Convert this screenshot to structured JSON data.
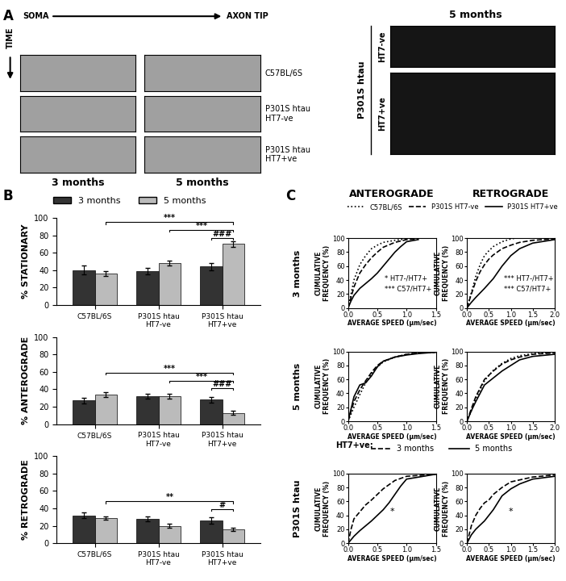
{
  "panel_labels": [
    "A",
    "B",
    "C"
  ],
  "panel_A": {
    "axis_start": "SOMA",
    "axis_end": "AXON TIP",
    "time_label": "TIME",
    "rows": [
      "C57BL/6S",
      "P301S htau\nHT7-ve",
      "P301S htau\nHT7+ve"
    ],
    "columns": [
      "3 months",
      "5 months"
    ],
    "images_title": "5 months",
    "images_group": "P301S htau",
    "images_rows": [
      "HT7-ve",
      "HT7+ve"
    ]
  },
  "panel_C": {
    "row_labels": [
      "3 months",
      "5 months",
      "P301S htau"
    ],
    "legend_prefix": "HT7+ve:"
  },
  "chart_data": [
    {
      "type": "bar",
      "y_label": "% STATIONARY",
      "legend": "upper left",
      "categories": [
        "C57BL/6S",
        "P301S htau\nHT7-ve",
        "P301S htau\nHT7+ve"
      ],
      "series": [
        {
          "name": "3 months",
          "color": "#333333",
          "values": [
            40,
            39,
            44
          ],
          "errors": [
            5,
            4,
            4
          ]
        },
        {
          "name": "5 months",
          "color": "#bbbbbb",
          "values": [
            36,
            48,
            70
          ],
          "errors": [
            3,
            3,
            3
          ]
        }
      ],
      "ylim": [
        0,
        100
      ],
      "yticks": [
        0,
        20,
        40,
        60,
        80,
        100
      ],
      "brackets": [
        {
          "a": [
            2,
            0
          ],
          "b": [
            2,
            1
          ],
          "text": "###"
        },
        {
          "a": [
            1,
            1
          ],
          "b": [
            2,
            1
          ],
          "text": "***"
        },
        {
          "a": [
            0,
            1
          ],
          "b": [
            2,
            1
          ],
          "text": "***"
        }
      ]
    },
    {
      "type": "bar",
      "y_label": "% ANTEROGRADE",
      "categories": [
        "C57BL/6S",
        "P301S htau\nHT7-ve",
        "P301S htau\nHT7+ve"
      ],
      "series": [
        {
          "name": "3 months",
          "color": "#333333",
          "values": [
            27,
            32,
            28
          ],
          "errors": [
            3,
            3,
            3
          ]
        },
        {
          "name": "5 months",
          "color": "#bbbbbb",
          "values": [
            34,
            32,
            13
          ],
          "errors": [
            3,
            3,
            2
          ]
        }
      ],
      "ylim": [
        0,
        100
      ],
      "yticks": [
        0,
        20,
        40,
        60,
        80,
        100
      ],
      "brackets": [
        {
          "a": [
            2,
            0
          ],
          "b": [
            2,
            1
          ],
          "text": "###"
        },
        {
          "a": [
            1,
            1
          ],
          "b": [
            2,
            1
          ],
          "text": "***"
        },
        {
          "a": [
            0,
            1
          ],
          "b": [
            2,
            1
          ],
          "text": "***"
        }
      ]
    },
    {
      "type": "bar",
      "y_label": "% RETROGRADE",
      "categories": [
        "C57BL/6S",
        "P301S htau\nHT7-ve",
        "P301S htau\nHT7+ve"
      ],
      "series": [
        {
          "name": "3 months",
          "color": "#333333",
          "values": [
            32,
            28,
            26
          ],
          "errors": [
            3,
            3,
            4
          ]
        },
        {
          "name": "5 months",
          "color": "#bbbbbb",
          "values": [
            29,
            20,
            16
          ],
          "errors": [
            2,
            2,
            2
          ]
        }
      ],
      "ylim": [
        0,
        100
      ],
      "yticks": [
        0,
        20,
        40,
        60,
        80,
        100
      ],
      "brackets": [
        {
          "a": [
            2,
            0
          ],
          "b": [
            2,
            1
          ],
          "text": "#"
        },
        {
          "a": [
            0,
            1
          ],
          "b": [
            2,
            1
          ],
          "text": "**"
        }
      ]
    },
    {
      "type": "line",
      "title": "ANTEROGRADE",
      "legend": "upper center",
      "x_label": "AVERAGE SPEED (µm/sec)",
      "y_label": "CUMULATIVE\nFREQUENCY (%)",
      "xlim": [
        0.0,
        1.5
      ],
      "xticks": [
        0.0,
        0.5,
        1.0,
        1.5
      ],
      "ylim": [
        0,
        100
      ],
      "yticks": [
        0,
        20,
        40,
        60,
        80,
        100
      ],
      "annotations": [
        "* HT7-/HT7+",
        "*** C57/HT7+"
      ],
      "series": [
        {
          "name": "C57BL/6S",
          "color": "#000000",
          "line_style": "dotted",
          "x": [
            0,
            0.05,
            0.1,
            0.2,
            0.3,
            0.4,
            0.5,
            0.6,
            0.8,
            1.0
          ],
          "values": [
            0,
            20,
            40,
            62,
            75,
            85,
            90,
            94,
            97,
            99
          ]
        },
        {
          "name": "P301S HT7-ve",
          "color": "#000000",
          "line_style": "dashed",
          "x": [
            0,
            0.05,
            0.1,
            0.2,
            0.3,
            0.4,
            0.5,
            0.6,
            0.8,
            1.0,
            1.2
          ],
          "values": [
            0,
            15,
            30,
            50,
            62,
            72,
            80,
            87,
            94,
            98,
            99
          ]
        },
        {
          "name": "P301S HT7+ve",
          "color": "#000000",
          "line_style": "solid",
          "x": [
            0,
            0.05,
            0.1,
            0.2,
            0.3,
            0.4,
            0.5,
            0.6,
            0.7,
            0.8,
            0.9,
            1.0,
            1.2
          ],
          "values": [
            0,
            10,
            18,
            28,
            35,
            42,
            50,
            60,
            70,
            80,
            88,
            95,
            98
          ]
        }
      ]
    },
    {
      "type": "line",
      "title": "RETROGRADE",
      "x_label": "AVERAGE SPEED (µm/sec)",
      "y_label": "CUMULATIVE\nFREQUENCY (%)",
      "xlim": [
        0.0,
        2.0
      ],
      "xticks": [
        0.0,
        0.5,
        1.0,
        1.5,
        2.0
      ],
      "ylim": [
        0,
        100
      ],
      "yticks": [
        0,
        20,
        40,
        60,
        80,
        100
      ],
      "annotations": [
        "*** HT7-/HT7+",
        "*** C57/HT7+"
      ],
      "series": [
        {
          "name": "C57BL/6S",
          "color": "#000000",
          "line_style": "dotted",
          "x": [
            0,
            0.1,
            0.2,
            0.3,
            0.4,
            0.5,
            0.6,
            0.8,
            1.0,
            1.1
          ],
          "values": [
            0,
            22,
            45,
            62,
            75,
            82,
            88,
            95,
            99,
            100
          ]
        },
        {
          "name": "P301S HT7-ve",
          "color": "#000000",
          "line_style": "dashed",
          "x": [
            0,
            0.1,
            0.2,
            0.3,
            0.4,
            0.5,
            0.6,
            0.8,
            1.0,
            1.2,
            1.5,
            2.0
          ],
          "values": [
            0,
            20,
            38,
            52,
            62,
            70,
            76,
            85,
            90,
            94,
            97,
            99
          ]
        },
        {
          "name": "P301S HT7+ve",
          "color": "#000000",
          "line_style": "solid",
          "x": [
            0,
            0.1,
            0.2,
            0.4,
            0.6,
            0.8,
            1.0,
            1.2,
            1.5,
            2.0
          ],
          "values": [
            0,
            8,
            15,
            28,
            42,
            60,
            75,
            85,
            93,
            98
          ]
        }
      ]
    },
    {
      "type": "line",
      "x_label": "AVERAGE SPEED (µm/sec)",
      "y_label": "CUMULATIVE\nFREQUENCY (%)",
      "xlim": [
        0.0,
        1.5
      ],
      "xticks": [
        0.0,
        0.5,
        1.0,
        1.5
      ],
      "ylim": [
        0,
        100
      ],
      "yticks": [
        0,
        20,
        40,
        60,
        80,
        100
      ],
      "series": [
        {
          "name": "C57BL/6S",
          "color": "#000000",
          "line_style": "dotted",
          "x": [
            0,
            0.1,
            0.2,
            0.3,
            0.4,
            0.5,
            0.6,
            0.8,
            1.0,
            1.2,
            1.5
          ],
          "values": [
            0,
            20,
            38,
            55,
            68,
            78,
            85,
            92,
            96,
            98,
            99
          ]
        },
        {
          "name": "P301S HT7-ve",
          "color": "#000000",
          "line_style": "dashed",
          "x": [
            0,
            0.1,
            0.2,
            0.3,
            0.4,
            0.5,
            0.6,
            0.8,
            1.0,
            1.2,
            1.5
          ],
          "values": [
            0,
            28,
            45,
            58,
            70,
            80,
            86,
            92,
            96,
            98,
            99
          ]
        },
        {
          "name": "P301S HT7+ve",
          "color": "#000000",
          "line_style": "solid",
          "x": [
            0,
            0.1,
            0.2,
            0.3,
            0.4,
            0.5,
            0.6,
            0.8,
            1.0,
            1.2,
            1.5
          ],
          "values": [
            0,
            35,
            52,
            55,
            65,
            78,
            86,
            92,
            95,
            97,
            99
          ]
        }
      ]
    },
    {
      "type": "line",
      "x_label": "AVERAGE SPEED (µm/sec)",
      "y_label": "CUMULATIVE\nFREQUENCY (%)",
      "xlim": [
        0.0,
        2.0
      ],
      "xticks": [
        0.0,
        0.5,
        1.0,
        1.5,
        2.0
      ],
      "ylim": [
        0,
        100
      ],
      "yticks": [
        0,
        20,
        40,
        60,
        80,
        100
      ],
      "series": [
        {
          "name": "C57BL/6S",
          "color": "#000000",
          "line_style": "dotted",
          "x": [
            0,
            0.1,
            0.2,
            0.4,
            0.6,
            0.8,
            1.0,
            1.2,
            1.5,
            2.0
          ],
          "values": [
            0,
            15,
            32,
            58,
            73,
            83,
            90,
            94,
            97,
            99
          ]
        },
        {
          "name": "P301S HT7-ve",
          "color": "#000000",
          "line_style": "dashed",
          "x": [
            0,
            0.1,
            0.2,
            0.4,
            0.6,
            0.8,
            1.0,
            1.2,
            1.5,
            2.0
          ],
          "values": [
            0,
            18,
            35,
            60,
            72,
            82,
            88,
            92,
            96,
            98
          ]
        },
        {
          "name": "P301S HT7+ve",
          "color": "#000000",
          "line_style": "solid",
          "x": [
            0,
            0.1,
            0.2,
            0.4,
            0.6,
            0.8,
            1.0,
            1.2,
            1.5,
            2.0
          ],
          "values": [
            0,
            15,
            28,
            52,
            62,
            72,
            80,
            88,
            93,
            96
          ]
        }
      ]
    },
    {
      "type": "line",
      "legend": "upper center",
      "x_label": "AVERAGE SPEED (µm/sec)",
      "y_label": "CUMULATIVE\nFREQUENCY (%)",
      "xlim": [
        0.0,
        1.5
      ],
      "xticks": [
        0.0,
        0.5,
        1.0,
        1.5
      ],
      "ylim": [
        0,
        100
      ],
      "yticks": [
        0,
        20,
        40,
        60,
        80,
        100
      ],
      "annotations": [
        "*"
      ],
      "series": [
        {
          "name": "3 months",
          "color": "#000000",
          "line_style": "dashed",
          "x": [
            0,
            0.05,
            0.1,
            0.2,
            0.3,
            0.4,
            0.5,
            0.6,
            0.8,
            1.0,
            1.5
          ],
          "values": [
            0,
            20,
            35,
            45,
            55,
            62,
            70,
            78,
            90,
            96,
            99
          ]
        },
        {
          "name": "5 months",
          "color": "#000000",
          "line_style": "solid",
          "x": [
            0,
            0.1,
            0.2,
            0.3,
            0.4,
            0.5,
            0.6,
            0.7,
            0.8,
            0.9,
            1.0,
            1.5
          ],
          "values": [
            0,
            10,
            18,
            25,
            32,
            40,
            48,
            58,
            70,
            82,
            92,
            99
          ]
        }
      ]
    },
    {
      "type": "line",
      "x_label": "AVERAGE SPEED (µm/sec)",
      "y_label": "CUMULATIVE\nFREQUENCY (%)",
      "xlim": [
        0.0,
        2.0
      ],
      "xticks": [
        0.0,
        0.5,
        1.0,
        1.5,
        2.0
      ],
      "ylim": [
        0,
        100
      ],
      "yticks": [
        0,
        20,
        40,
        60,
        80,
        100
      ],
      "annotations": [
        "*"
      ],
      "series": [
        {
          "name": "3 months",
          "color": "#000000",
          "line_style": "dashed",
          "x": [
            0,
            0.1,
            0.2,
            0.3,
            0.4,
            0.5,
            0.6,
            0.8,
            1.0,
            1.5,
            2.0
          ],
          "values": [
            0,
            25,
            40,
            50,
            58,
            62,
            70,
            80,
            88,
            95,
            98
          ]
        },
        {
          "name": "5 months",
          "color": "#000000",
          "line_style": "solid",
          "x": [
            0,
            0.1,
            0.2,
            0.4,
            0.6,
            0.8,
            1.0,
            1.2,
            1.5,
            2.0
          ],
          "values": [
            0,
            12,
            20,
            32,
            48,
            68,
            78,
            85,
            92,
            96
          ]
        }
      ]
    }
  ]
}
